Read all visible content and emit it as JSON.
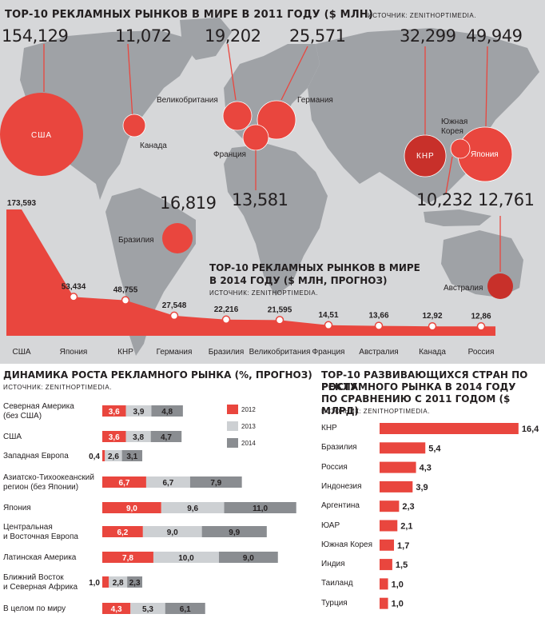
{
  "map_panel": {
    "title": "ТОР-10 РЕКЛАМНЫХ РЫНКОВ В МИРЕ В 2011 ГОДУ ($ МЛН)",
    "source": "ИСТОЧНИК: ZENITHOPTIMEDIA.",
    "colors": {
      "map_bg": "#d6d7d9",
      "land": "#9fa2a6",
      "accent": "#e9463e",
      "dark": "#c8302a"
    },
    "markets_2011": [
      {
        "country": "США",
        "value": "154,129",
        "bubble_label": "США"
      },
      {
        "country": "Канада",
        "value": "11,072",
        "bubble_label": ""
      },
      {
        "country": "Великобритания",
        "value": "19,202",
        "bubble_label": ""
      },
      {
        "country": "Германия",
        "value": "25,571",
        "bubble_label": ""
      },
      {
        "country": "Франция",
        "value": "13,581",
        "bubble_label": ""
      },
      {
        "country": "Бразилия",
        "value": "16,819",
        "bubble_label": ""
      },
      {
        "country": "КНР",
        "value": "32,299",
        "bubble_label": "КНР"
      },
      {
        "country": "Южная Корея",
        "value": "10,232",
        "bubble_label": ""
      },
      {
        "country": "Япония",
        "value": "49,949",
        "bubble_label": "Япония"
      },
      {
        "country": "Австралия",
        "value": "12,761",
        "bubble_label": ""
      }
    ],
    "map_labels": {
      "canada": "Канада",
      "uk": "Великобритания",
      "germany": "Германия",
      "france": "Франция",
      "brazil": "Бразилия",
      "korea_1": "Южная",
      "korea_2": "Корея",
      "australia": "Австралия"
    }
  },
  "forecast_2014": {
    "title_1": "ТОР-10 РЕКЛАМНЫХ РЫНКОВ В МИРЕ",
    "title_2": "В 2014 ГОДУ ($ МЛН, ПРОГНОЗ)",
    "source": "ИСТОЧНИК: ZENITHOPTIMEDIA."
  },
  "growth_panel": {
    "title": "ДИНАМИКА РОСТА РЕКЛАМНОГО РЫНКА (%, ПРОГНОЗ)",
    "source": "ИСТОЧНИК: ZENITHOPTIMEDIA.",
    "legend": [
      {
        "label": "2012",
        "color": "#e9463e"
      },
      {
        "label": "2013",
        "color": "#cdd0d3"
      },
      {
        "label": "2014",
        "color": "#8a8d91"
      }
    ]
  },
  "dev_panel": {
    "title_1": "ТОР-10 РАЗВИВАЮЩИХСЯ СТРАН ПО РОСТУ",
    "title_2": "РЕКЛАМНОГО РЫНКА В 2014 ГОДУ",
    "title_3": "ПО СРАВНЕНИЮ С 2011 ГОДОМ ($ МЛРД)",
    "source": "ИСТОЧНИК: ZENITHOPTIMEDIA."
  },
  "chart_data": [
    {
      "type": "area",
      "title": "ТОР-10 РЕКЛАМНЫХ РЫНКОВ В МИРЕ В 2014 ГОДУ ($ МЛН, ПРОГНОЗ)",
      "categories": [
        "США",
        "Япония",
        "КНР",
        "Германия",
        "Бразилия",
        "Великобритания",
        "Франция",
        "Австралия",
        "Канада",
        "Россия"
      ],
      "values": [
        173.593,
        53.434,
        48.755,
        27.548,
        22.216,
        21.595,
        14.51,
        13.66,
        12.92,
        12.86
      ],
      "value_labels": [
        "173,593",
        "53,434",
        "48,755",
        "27,548",
        "22,216",
        "21,595",
        "14,51",
        "13,66",
        "12,92",
        "12,86"
      ],
      "color": "#e9463e"
    },
    {
      "type": "bar",
      "orientation": "horizontal",
      "stacked": true,
      "title": "ДИНАМИКА РОСТА РЕКЛАМНОГО РЫНКА (%, ПРОГНОЗ)",
      "categories": [
        "Северная Америка\n(без США)",
        "США",
        "Западная Европа",
        "Азиатско-Тихоокеанский\nрегион (без Японии)",
        "Япония",
        "Центральная\nи Восточная Европа",
        "Латинская Америка",
        "Ближний Восток\nи Северная Африка",
        "В целом по миру"
      ],
      "series": [
        {
          "name": "2012",
          "color": "#e9463e",
          "values": [
            3.6,
            3.6,
            0.4,
            6.7,
            9.0,
            6.2,
            7.8,
            1.0,
            4.3
          ],
          "labels": [
            "3,6",
            "3,6",
            "0,4",
            "6,7",
            "9,0",
            "6,2",
            "7,8",
            "1,0",
            "4,3"
          ]
        },
        {
          "name": "2013",
          "color": "#cdd0d3",
          "values": [
            3.9,
            3.8,
            2.6,
            6.7,
            9.6,
            9.0,
            10.0,
            2.8,
            5.3
          ],
          "labels": [
            "3,9",
            "3,8",
            "2,6",
            "6,7",
            "9,6",
            "9,0",
            "10,0",
            "2,8",
            "5,3"
          ]
        },
        {
          "name": "2014",
          "color": "#8a8d91",
          "values": [
            4.8,
            4.7,
            3.1,
            7.9,
            11.0,
            9.9,
            9.0,
            2.3,
            6.1
          ],
          "labels": [
            "4,8",
            "4,7",
            "3,1",
            "7,9",
            "11,0",
            "9,9",
            "9,0",
            "2,3",
            "6,1"
          ]
        }
      ]
    },
    {
      "type": "bar",
      "orientation": "horizontal",
      "title": "ТОР-10 РАЗВИВАЮЩИХСЯ СТРАН ПО РОСТУ РЕКЛАМНОГО РЫНКА В 2014 ГОДУ ПО СРАВНЕНИЮ С 2011 ГОДОМ ($ МЛРД)",
      "categories": [
        "КНР",
        "Бразилия",
        "Россия",
        "Индонезия",
        "Аргентина",
        "ЮАР",
        "Южная Корея",
        "Индия",
        "Таиланд",
        "Турция"
      ],
      "values": [
        16.4,
        5.4,
        4.3,
        3.9,
        2.3,
        2.1,
        1.7,
        1.5,
        1.0,
        1.0
      ],
      "value_labels": [
        "16,4",
        "5,4",
        "4,3",
        "3,9",
        "2,3",
        "2,1",
        "1,7",
        "1,5",
        "1,0",
        "1,0"
      ],
      "color": "#e9463e"
    }
  ]
}
